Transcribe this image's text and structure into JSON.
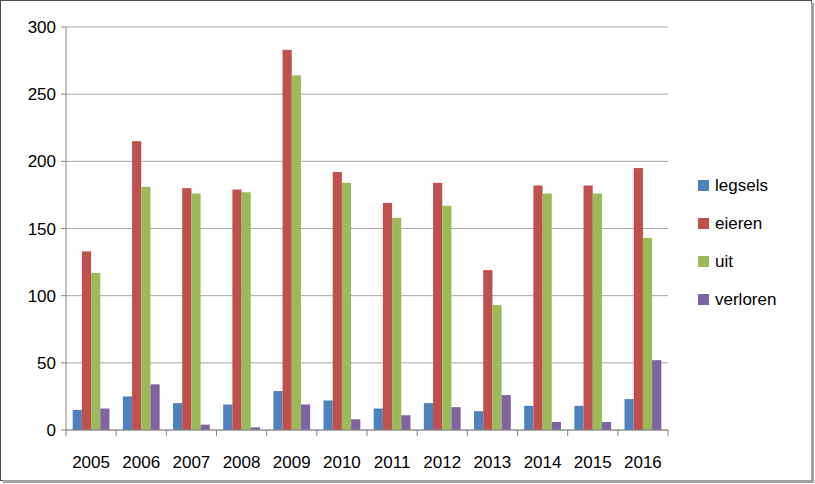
{
  "chart_data": {
    "type": "bar",
    "categories": [
      "2005",
      "2006",
      "2007",
      "2008",
      "2009",
      "2010",
      "2011",
      "2012",
      "2013",
      "2014",
      "2015",
      "2016"
    ],
    "series": [
      {
        "name": "legsels",
        "color": "#4f81bd",
        "values": [
          15,
          25,
          20,
          19,
          29,
          22,
          16,
          20,
          14,
          18,
          18,
          23
        ]
      },
      {
        "name": "eieren",
        "color": "#c0504d",
        "values": [
          133,
          215,
          180,
          179,
          283,
          192,
          169,
          184,
          119,
          182,
          182,
          195
        ]
      },
      {
        "name": "uit",
        "color": "#9bbb59",
        "values": [
          117,
          181,
          176,
          177,
          264,
          184,
          158,
          167,
          93,
          176,
          176,
          143
        ]
      },
      {
        "name": "verloren",
        "color": "#8064a2",
        "values": [
          16,
          34,
          4,
          2,
          19,
          8,
          11,
          17,
          26,
          6,
          6,
          52
        ]
      }
    ],
    "ylim": [
      0,
      300
    ],
    "yticks": [
      0,
      50,
      100,
      150,
      200,
      250,
      300
    ],
    "grid": true,
    "legend": "right"
  }
}
